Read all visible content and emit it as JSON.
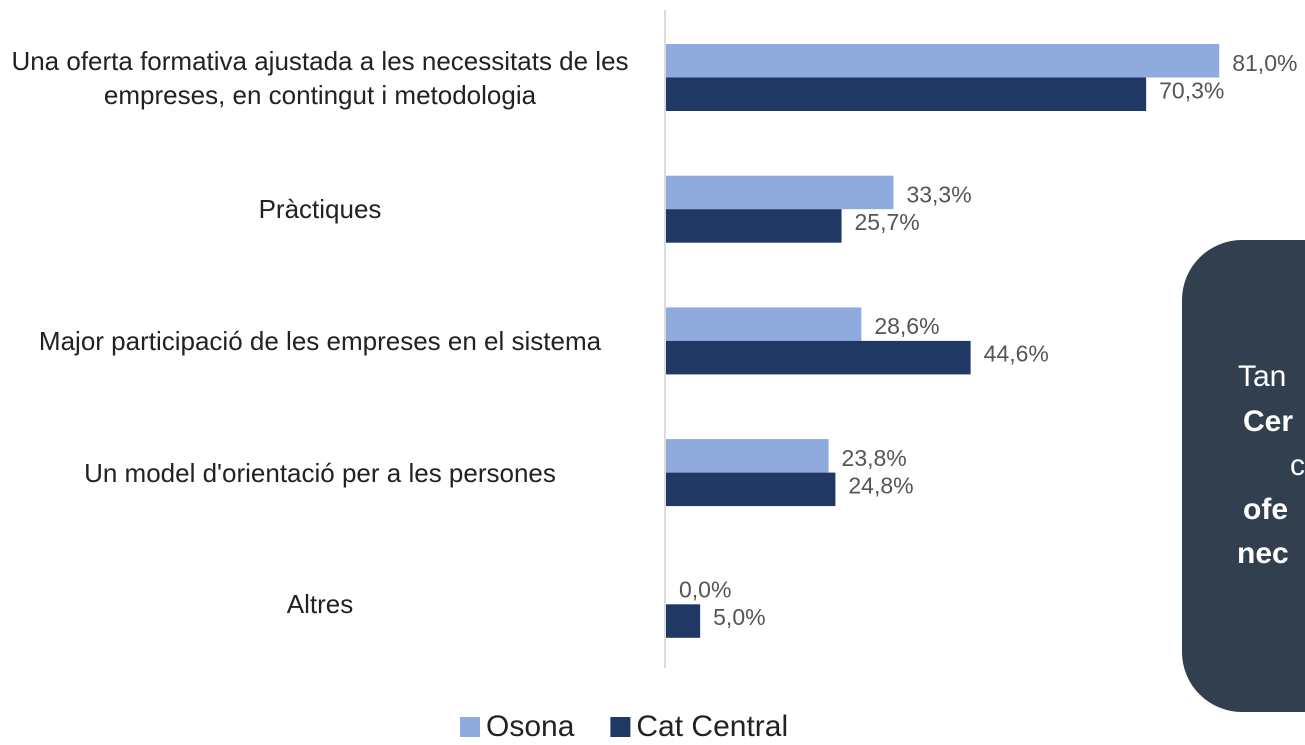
{
  "chart_data": {
    "type": "bar",
    "orientation": "horizontal",
    "categories": [
      "Una oferta formativa ajustada a les necessitats de les empreses, en contingut i metodologia",
      "Pràctiques",
      "Major participació de les empreses en el sistema",
      "Un model d'orientació per a les persones",
      "Altres"
    ],
    "series": [
      {
        "name": "Osona",
        "color": "#8faadc",
        "values": [
          81.0,
          33.3,
          28.6,
          23.8,
          0.0
        ],
        "value_labels": [
          "81,0%",
          "33,3%",
          "28,6%",
          "23,8%",
          "0,0%"
        ]
      },
      {
        "name": "Cat Central",
        "color": "#203864",
        "values": [
          70.3,
          25.7,
          44.6,
          24.8,
          5.0
        ],
        "value_labels": [
          "70,3%",
          "25,7%",
          "44,6%",
          "24,8%",
          "5,0%"
        ]
      }
    ],
    "annotations": [
      "Tan",
      "Cer",
      "c",
      "ofe",
      "nec"
    ]
  }
}
